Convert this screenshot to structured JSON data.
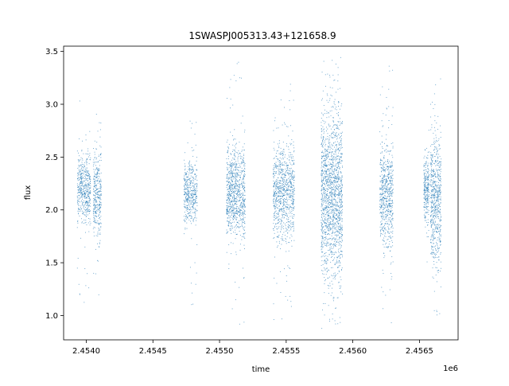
{
  "chart_data": {
    "type": "scatter",
    "title": "1SWASPJ005313.43+121658.9",
    "xlabel": "time",
    "ylabel": "flux",
    "x_offset_label": "1e6",
    "xlim": [
      2.45383,
      2.45679
    ],
    "ylim": [
      0.77,
      3.55
    ],
    "grid": false,
    "legend": "none",
    "marker_color": "#1f77b4",
    "x_ticks": [
      2.454,
      2.4545,
      2.455,
      2.4555,
      2.456,
      2.4565
    ],
    "x_tick_labels": [
      "2.4540",
      "2.4545",
      "2.4550",
      "2.4555",
      "2.4560",
      "2.4565"
    ],
    "y_ticks": [
      1.0,
      1.5,
      2.0,
      2.5,
      3.0,
      3.5
    ],
    "y_tick_labels": [
      "1.0",
      "1.5",
      "2.0",
      "2.5",
      "3.0",
      "3.5"
    ],
    "clusters": [
      {
        "x_center": 2.45398,
        "x_width": 0.0001,
        "y_center": 2.2,
        "y_spread": 0.16,
        "y_min": 1.08,
        "y_max": 3.17,
        "n": 500
      },
      {
        "x_center": 2.45408,
        "x_width": 6e-05,
        "y_center": 2.15,
        "y_spread": 0.2,
        "y_min": 1.08,
        "y_max": 3.17,
        "n": 350
      },
      {
        "x_center": 2.45478,
        "x_width": 0.0001,
        "y_center": 2.18,
        "y_spread": 0.16,
        "y_min": 1.08,
        "y_max": 2.9,
        "n": 450
      },
      {
        "x_center": 2.45512,
        "x_width": 0.00014,
        "y_center": 2.17,
        "y_spread": 0.22,
        "y_min": 0.88,
        "y_max": 3.42,
        "n": 900
      },
      {
        "x_center": 2.45548,
        "x_width": 0.00016,
        "y_center": 2.18,
        "y_spread": 0.22,
        "y_min": 0.9,
        "y_max": 3.2,
        "n": 900
      },
      {
        "x_center": 2.45584,
        "x_width": 0.00016,
        "y_center": 2.15,
        "y_spread": 0.4,
        "y_min": 0.88,
        "y_max": 3.45,
        "n": 1600
      },
      {
        "x_center": 2.45625,
        "x_width": 0.0001,
        "y_center": 2.15,
        "y_spread": 0.25,
        "y_min": 0.88,
        "y_max": 3.42,
        "n": 650
      },
      {
        "x_center": 2.45655,
        "x_width": 4e-05,
        "y_center": 2.2,
        "y_spread": 0.15,
        "y_min": 1.25,
        "y_max": 2.85,
        "n": 250
      },
      {
        "x_center": 2.45662,
        "x_width": 8e-05,
        "y_center": 2.1,
        "y_spread": 0.3,
        "y_min": 0.92,
        "y_max": 3.25,
        "n": 650
      }
    ]
  }
}
